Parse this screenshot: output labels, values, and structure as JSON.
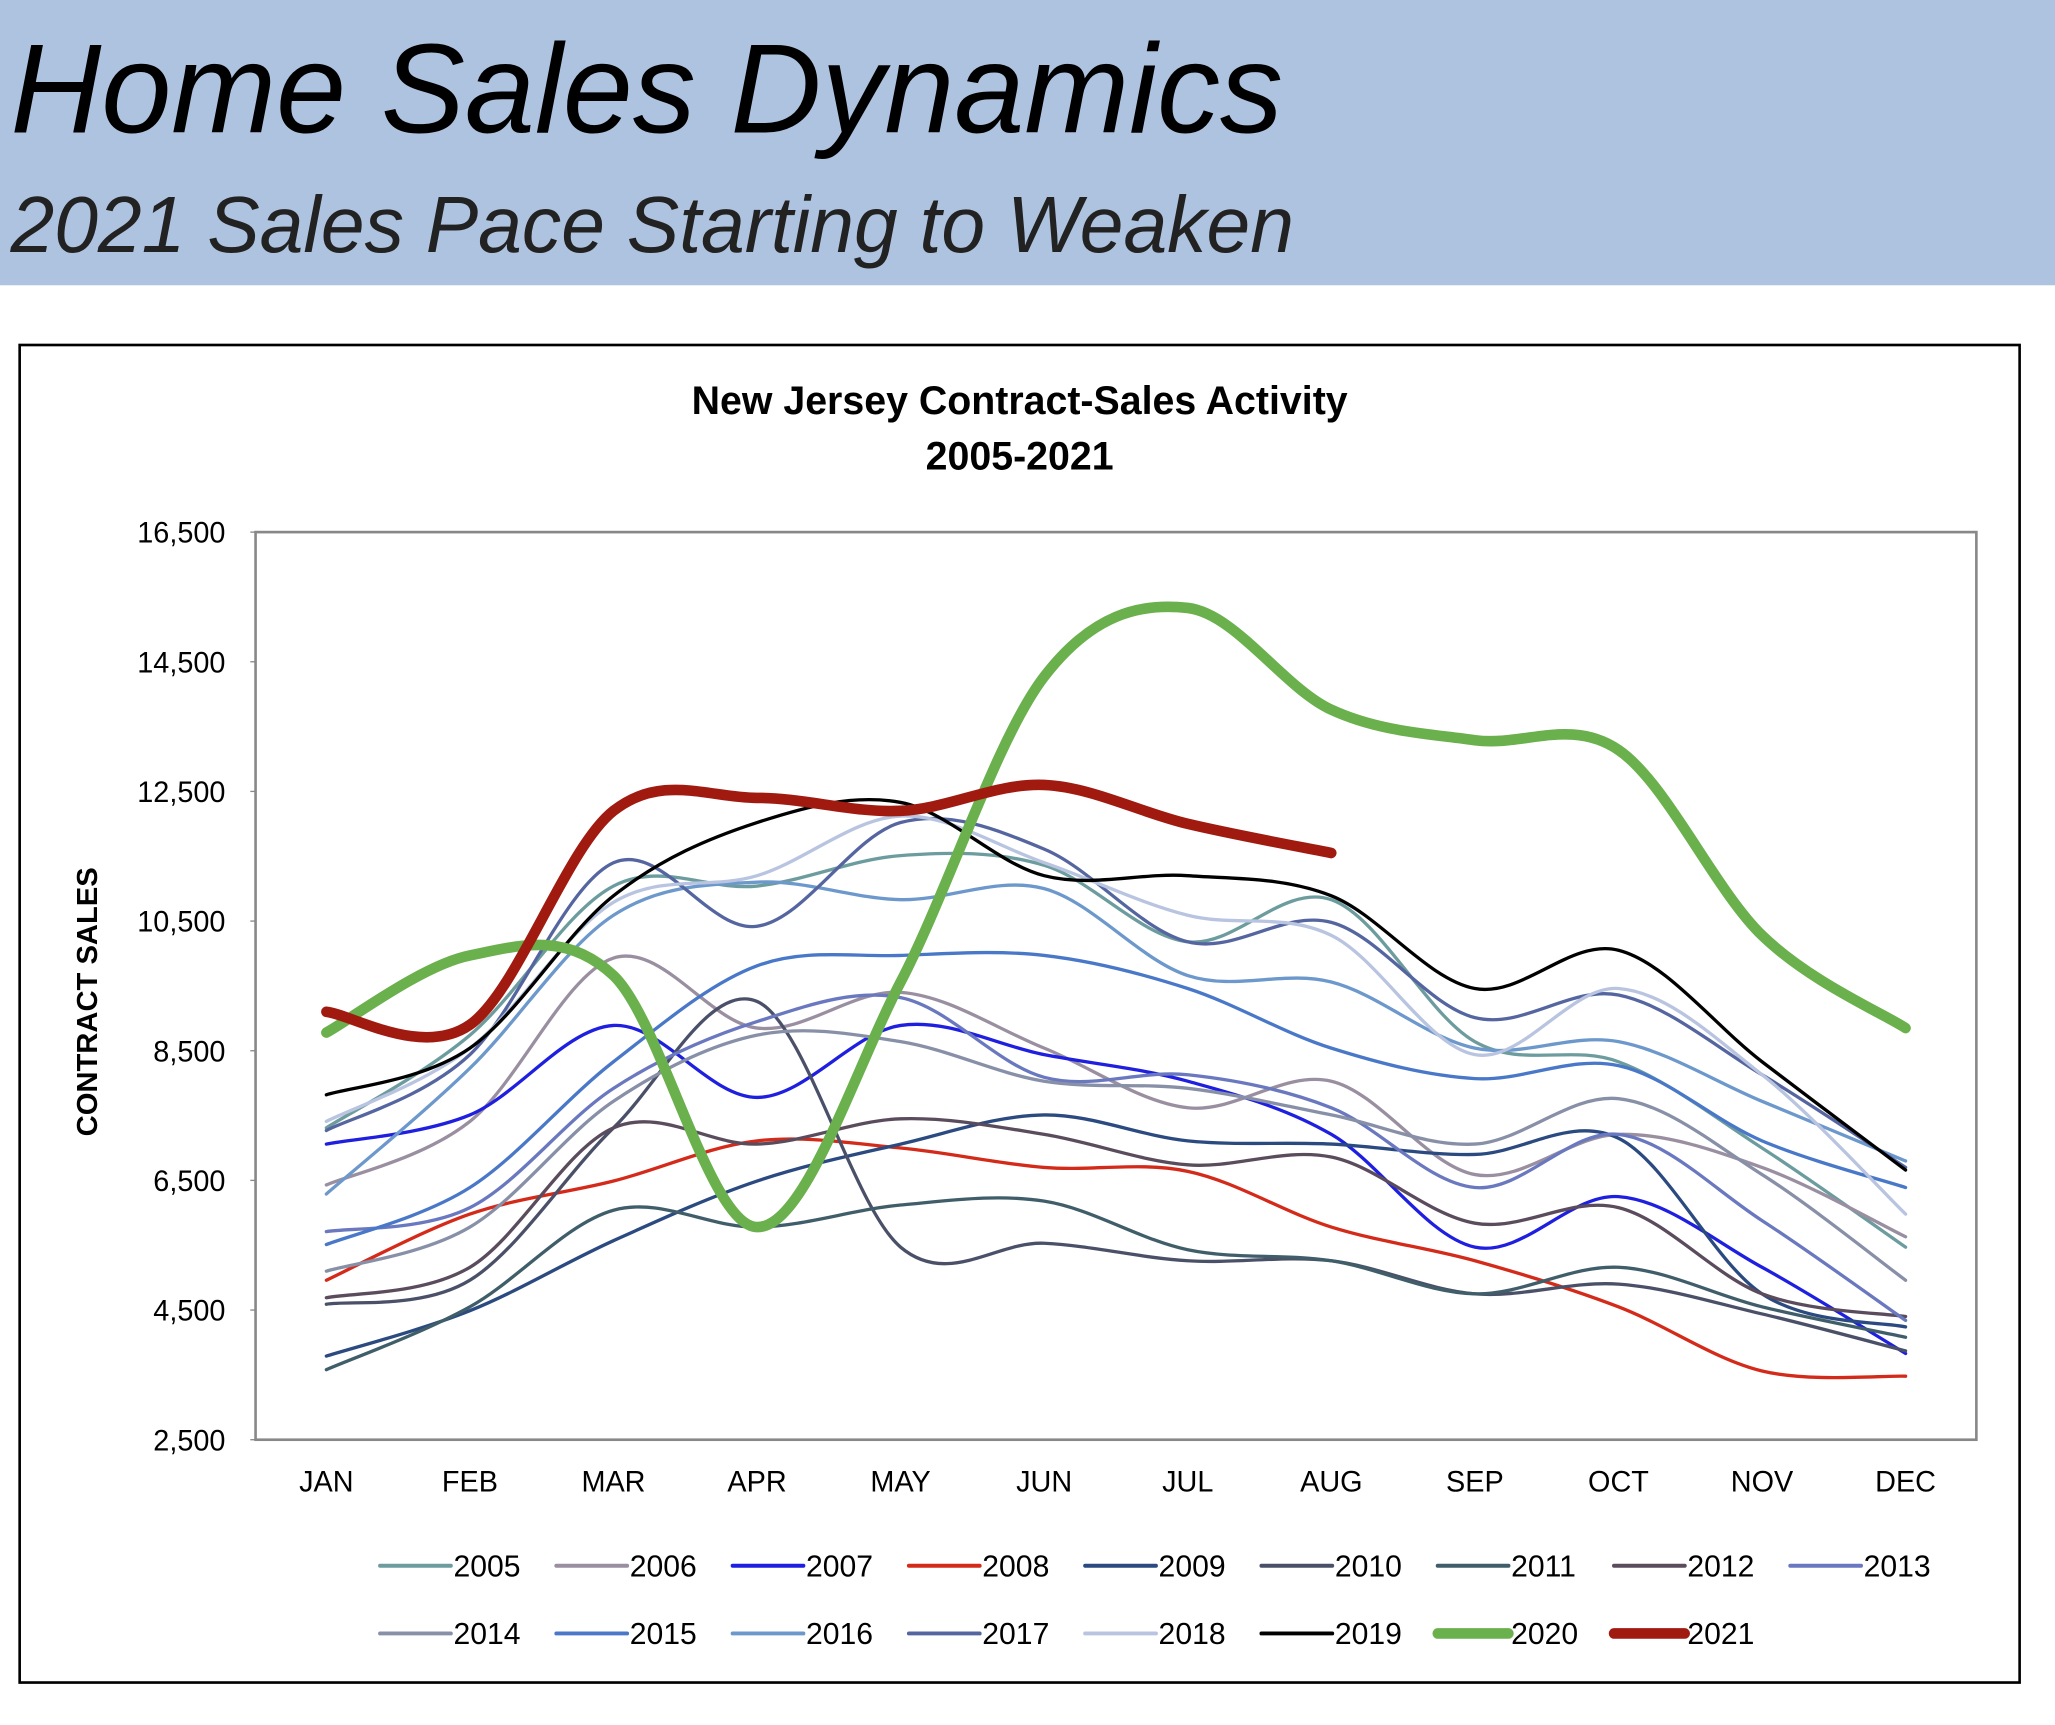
{
  "header": {
    "title": "Home Sales Dynamics",
    "subtitle": "2021 Sales Pace Starting to Weaken"
  },
  "chart_data": {
    "type": "line",
    "title": "New Jersey Contract-Sales Activity",
    "subtitle": "2005-2021",
    "y_label": "CONTRACT SALES",
    "categories": [
      "JAN",
      "FEB",
      "MAR",
      "APR",
      "MAY",
      "JUN",
      "JUL",
      "AUG",
      "SEP",
      "OCT",
      "NOV",
      "DEC"
    ],
    "ylim": [
      2500,
      16500
    ],
    "yticks": [
      {
        "value": 2500,
        "label": "2,500"
      },
      {
        "value": 4500,
        "label": "4,500"
      },
      {
        "value": 6500,
        "label": "6,500"
      },
      {
        "value": 8500,
        "label": "8,500"
      },
      {
        "value": 10500,
        "label": "10,500"
      },
      {
        "value": 12500,
        "label": "12,500"
      },
      {
        "value": 14500,
        "label": "14,500"
      },
      {
        "value": 16500,
        "label": "16,500"
      }
    ],
    "series": [
      {
        "name": "2005",
        "color": "#6d9c9e",
        "values": [
          7310,
          8740,
          11040,
          11040,
          11510,
          11360,
          10180,
          10830,
          8640,
          8330,
          7000,
          5470
        ]
      },
      {
        "name": "2006",
        "color": "#9a8fa0",
        "values": [
          6430,
          7410,
          9930,
          8850,
          9400,
          8540,
          7620,
          8030,
          6590,
          7210,
          6700,
          5630
        ]
      },
      {
        "name": "2007",
        "color": "#1f1fe0",
        "values": [
          7060,
          7510,
          8890,
          7780,
          8890,
          8440,
          8030,
          7210,
          5470,
          6250,
          5160,
          3830
        ]
      },
      {
        "name": "2008",
        "color": "#d42a1a",
        "values": [
          4960,
          5980,
          6490,
          7110,
          7000,
          6700,
          6640,
          5780,
          5260,
          4550,
          3560,
          3480
        ]
      },
      {
        "name": "2009",
        "color": "#2a4a80",
        "values": [
          3790,
          4490,
          5570,
          6490,
          7060,
          7510,
          7110,
          7060,
          6900,
          7150,
          4750,
          4240
        ]
      },
      {
        "name": "2010",
        "color": "#4a5068",
        "values": [
          4590,
          4960,
          7310,
          9260,
          5470,
          5530,
          5260,
          5260,
          4750,
          4900,
          4440,
          3870
        ]
      },
      {
        "name": "2011",
        "color": "#405e6a",
        "values": [
          3580,
          4550,
          6040,
          5780,
          6120,
          6180,
          5430,
          5260,
          4750,
          5160,
          4550,
          4080
        ]
      },
      {
        "name": "2012",
        "color": "#5a4c5c",
        "values": [
          4690,
          5160,
          7310,
          7060,
          7450,
          7210,
          6740,
          6860,
          5840,
          6080,
          4750,
          4400
        ]
      },
      {
        "name": "2013",
        "color": "#6a78c0",
        "values": [
          5710,
          6080,
          7920,
          8950,
          9320,
          8090,
          8130,
          7620,
          6390,
          7210,
          5880,
          4340
        ]
      },
      {
        "name": "2014",
        "color": "#8890a8",
        "values": [
          5100,
          5780,
          7720,
          8740,
          8640,
          8030,
          7920,
          7510,
          7060,
          7760,
          6590,
          4960
        ]
      },
      {
        "name": "2015",
        "color": "#4a78c8",
        "values": [
          5510,
          6390,
          8330,
          9810,
          9970,
          9970,
          9460,
          8540,
          8070,
          8270,
          7110,
          6390
        ]
      },
      {
        "name": "2016",
        "color": "#6c98cc",
        "values": [
          6290,
          8230,
          10590,
          11100,
          10830,
          11000,
          9660,
          9560,
          8540,
          8640,
          7720,
          6800
        ]
      },
      {
        "name": "2017",
        "color": "#5565a0",
        "values": [
          7270,
          8440,
          11400,
          10420,
          12020,
          11610,
          10180,
          10480,
          9010,
          9360,
          8130,
          6700
        ]
      },
      {
        "name": "2018",
        "color": "#b8c4e0",
        "values": [
          7410,
          8540,
          10790,
          11200,
          12120,
          11400,
          10590,
          10280,
          8440,
          9460,
          8130,
          5980
        ]
      },
      {
        "name": "2019",
        "color": "#000000",
        "values": [
          7820,
          8540,
          10890,
          12020,
          12330,
          11200,
          11200,
          10890,
          9460,
          10050,
          8330,
          6660
        ]
      },
      {
        "name": "2020",
        "color": "#6ab04c",
        "values": [
          8780,
          9970,
          9660,
          5780,
          9560,
          14270,
          15330,
          13760,
          13290,
          13140,
          10280,
          8850
        ]
      },
      {
        "name": "2021",
        "color": "#a01a10",
        "values": [
          9100,
          8900,
          12200,
          12400,
          12200,
          12600,
          12000,
          11550,
          null,
          null,
          null,
          null
        ]
      }
    ]
  }
}
